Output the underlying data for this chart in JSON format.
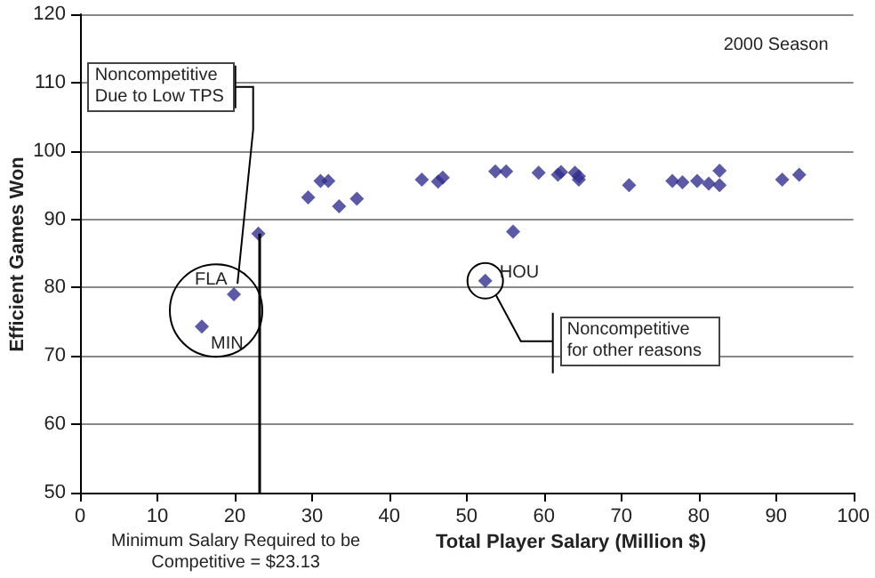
{
  "chart_data": {
    "type": "scatter",
    "xlabel": "Total Player Salary (Million $)",
    "ylabel": "Efficient Games Won",
    "x": [
      15.75,
      19.9,
      23.06,
      29.5,
      31.1,
      32.1,
      33.5,
      35.8,
      44.2,
      46.3,
      46.9,
      52.4,
      53.7,
      55.1,
      56.0,
      59.3,
      61.8,
      62.2,
      64.0,
      64.5,
      64.5,
      71.0,
      76.6,
      77.9,
      79.8,
      81.3,
      82.7,
      82.7,
      90.8,
      93.0
    ],
    "values": [
      74.3,
      79.0,
      87.9,
      93.2,
      95.6,
      95.6,
      91.9,
      93.0,
      95.8,
      95.5,
      96.1,
      81.0,
      97.0,
      97.0,
      88.2,
      96.8,
      96.5,
      96.9,
      96.8,
      96.3,
      95.8,
      95.0,
      95.6,
      95.4,
      95.6,
      95.2,
      97.1,
      95.0,
      95.8,
      96.5
    ],
    "color": "#33308f",
    "marker": "diamond",
    "grid": "y",
    "xlim": [
      0,
      100
    ],
    "xticks": [
      0,
      10,
      20,
      30,
      40,
      50,
      60,
      70,
      80,
      90,
      100
    ],
    "ylim": [
      50,
      120
    ],
    "yticks": [
      50,
      60,
      70,
      80,
      90,
      100,
      110,
      120
    ],
    "ref_lines": [
      {
        "axis": "x",
        "value": 23.13,
        "label": "Minimum Salary Required to be Competitive = $23.13",
        "color": "#000000"
      }
    ],
    "annotations": [
      "2000 Season",
      {
        "text": "FLA",
        "x": 19.9,
        "y": 79.0
      },
      {
        "text": "MIN",
        "x": 15.75,
        "y": 74.3
      },
      {
        "text": "HOU",
        "x": 52.4,
        "y": 81.0
      },
      {
        "text": "Noncompetitive Due to Low TPS",
        "x": 19.9,
        "y": 79.0
      },
      "Noncompetitive for other reasons"
    ]
  }
}
